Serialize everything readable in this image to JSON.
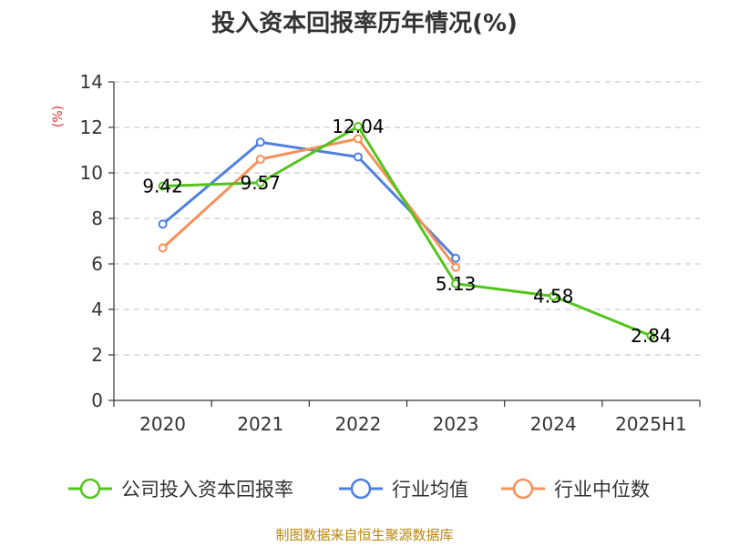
{
  "chart_data": {
    "type": "line",
    "title": "投入资本回报率历年情况(%)",
    "ylabel": "(%)",
    "categories": [
      "2020",
      "2021",
      "2022",
      "2023",
      "2024",
      "2025H1"
    ],
    "ylim": [
      0,
      14
    ],
    "yticks": [
      0,
      2,
      4,
      6,
      8,
      10,
      12,
      14
    ],
    "grid": true,
    "legend_position": "bottom",
    "series": [
      {
        "name": "公司投入资本回报率",
        "color": "#52c41a",
        "values": [
          9.42,
          9.57,
          12.04,
          5.13,
          4.58,
          2.84
        ],
        "labels": [
          "9.42",
          "9.57",
          "12.04",
          "5.13",
          "4.58",
          "2.84"
        ]
      },
      {
        "name": "行业均值",
        "color": "#4f7fe0",
        "values": [
          7.75,
          11.35,
          10.7,
          6.25,
          null,
          null
        ]
      },
      {
        "name": "行业中位数",
        "color": "#f5915b",
        "values": [
          6.7,
          10.6,
          11.5,
          5.85,
          null,
          null
        ]
      }
    ],
    "source": "制图数据来自恒生聚源数据库"
  }
}
